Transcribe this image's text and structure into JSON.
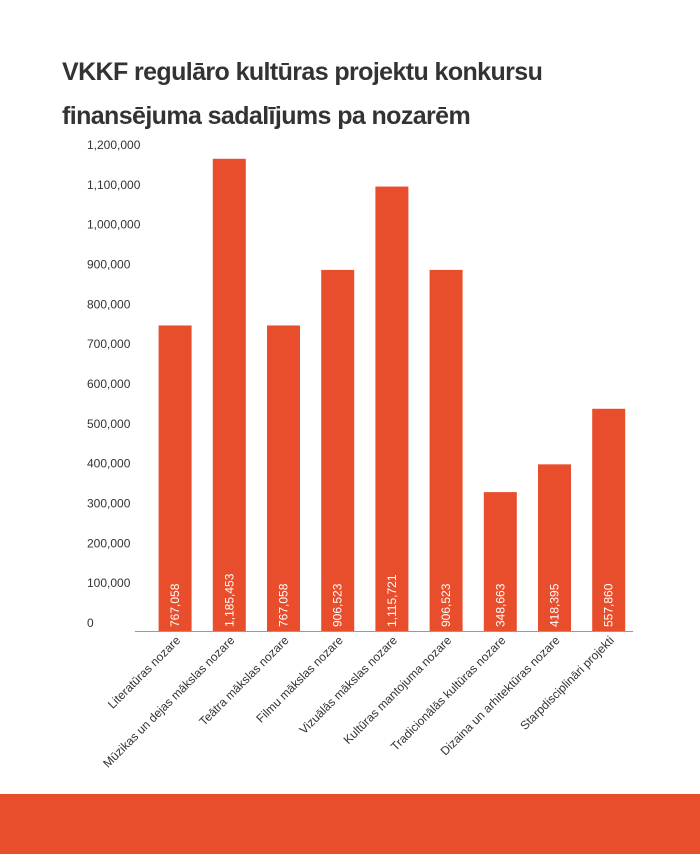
{
  "colors": {
    "bar": "#E84E2C",
    "footer": "#E84E2C",
    "axis": "#999999",
    "text": "#333333"
  },
  "chart_data": {
    "type": "bar",
    "title": "VKKF regulāro kultūras projektu konkursu finansējuma sadalījums pa nozarēm",
    "xlabel": "",
    "ylabel": "",
    "ylim": [
      0,
      1200000
    ],
    "yticks": [
      0,
      100000,
      200000,
      300000,
      400000,
      500000,
      600000,
      700000,
      800000,
      900000,
      1000000,
      1100000,
      1200000
    ],
    "ytick_labels": [
      "0",
      "100,000",
      "200,000",
      "300,000",
      "400,000",
      "500,000",
      "600,000",
      "700,000",
      "800,000",
      "900,000",
      "1,000,000",
      "1,100,000",
      "1,200,000"
    ],
    "grid": false,
    "categories": [
      "Literatūras nozare",
      "Mūzikas un dejas mākslas nozare",
      "Teātra mākslas nozare",
      "Filmu mākslas nozare",
      "Vizuālās mākslas nozare",
      "Kultūras mantojuma nozare",
      "Tradicionālās kultūras nozare",
      "Dizaina un arhitektūras nozare",
      "Starpdisciplināri projekti"
    ],
    "values": [
      767058,
      1185453,
      767058,
      906523,
      1115721,
      906523,
      348663,
      418395,
      557860
    ],
    "data_labels": [
      "767,058",
      "1,185,453",
      "767,058",
      "906,523",
      "1,115,721",
      "906,523",
      "348,663",
      "418,395",
      "557,860"
    ]
  }
}
